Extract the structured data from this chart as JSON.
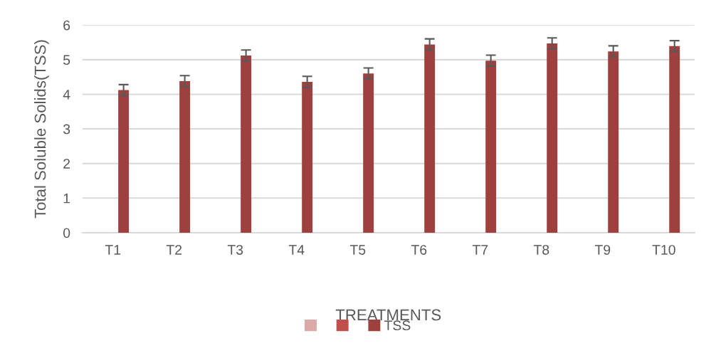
{
  "chart_data": {
    "type": "bar",
    "xlabel": "TREATMENTS",
    "ylabel": "Total Soluble Solids(TSS)",
    "categories": [
      "T1",
      "T2",
      "T3",
      "T4",
      "T5",
      "T6",
      "T7",
      "T8",
      "T9",
      "T10"
    ],
    "series": [
      {
        "color": "#dba9a8",
        "values": [
          null,
          null,
          null,
          null,
          null,
          null,
          null,
          null,
          null,
          null
        ]
      },
      {
        "color": "#c0504d",
        "values": [
          null,
          null,
          null,
          null,
          null,
          null,
          null,
          null,
          null,
          null
        ]
      },
      {
        "name": "TSS",
        "color": "#9e413e",
        "values": [
          4.12,
          4.38,
          5.12,
          4.36,
          4.6,
          5.44,
          4.97,
          5.47,
          5.24,
          5.39
        ],
        "errors": [
          0.16,
          0.16,
          0.16,
          0.16,
          0.16,
          0.16,
          0.16,
          0.16,
          0.16,
          0.16
        ]
      }
    ],
    "ylim": [
      0,
      6
    ],
    "yticks": [
      0,
      1,
      2,
      3,
      4,
      5,
      6
    ],
    "grid": "y",
    "legend": "bottom"
  }
}
